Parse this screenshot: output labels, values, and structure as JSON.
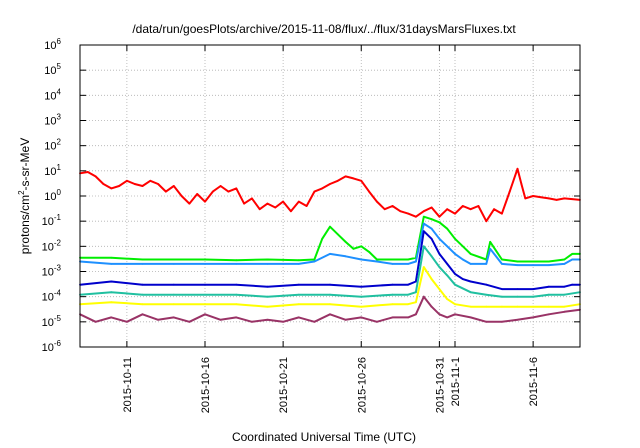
{
  "chart_data": {
    "type": "line",
    "title": "/data/run/goesPlots/archive/2015-11-08/flux/../flux/31daysMarsFluxes.txt",
    "xlabel": "Coordinated Universal Time (UTC)",
    "ylabel": "protons/cm2-s-sr-MeV",
    "ylabel_parts": {
      "base": "protons/cm",
      "sup": "2",
      "rest": "-s-sr-MeV"
    },
    "y_scale": "log",
    "ylim": [
      1e-06,
      1000000.0
    ],
    "y_ticks": [
      {
        "value": 1e-06,
        "base": "10",
        "exp": "-6"
      },
      {
        "value": 1e-05,
        "base": "10",
        "exp": "-5"
      },
      {
        "value": 0.0001,
        "base": "10",
        "exp": "-4"
      },
      {
        "value": 0.001,
        "base": "10",
        "exp": "-3"
      },
      {
        "value": 0.01,
        "base": "10",
        "exp": "-2"
      },
      {
        "value": 0.1,
        "base": "10",
        "exp": "-1"
      },
      {
        "value": 1,
        "base": "10",
        "exp": "0"
      },
      {
        "value": 10,
        "base": "10",
        "exp": "1"
      },
      {
        "value": 100,
        "base": "10",
        "exp": "2"
      },
      {
        "value": 1000,
        "base": "10",
        "exp": "3"
      },
      {
        "value": 10000,
        "base": "10",
        "exp": "4"
      },
      {
        "value": 100000,
        "base": "10",
        "exp": "5"
      },
      {
        "value": 1000000,
        "base": "10",
        "exp": "6"
      }
    ],
    "xlim": [
      "2015-10-08",
      "2015-11-09"
    ],
    "x_ticks": [
      {
        "date": "2015-10-11",
        "label": "2015-10-11"
      },
      {
        "date": "2015-10-16",
        "label": "2015-10-16"
      },
      {
        "date": "2015-10-21",
        "label": "2015-10-21"
      },
      {
        "date": "2015-10-26",
        "label": "2015-10-26"
      },
      {
        "date": "2015-10-31",
        "label": "2015-10-31"
      },
      {
        "date": "2015-11-01",
        "label": "2015-11-1"
      },
      {
        "date": "2015-11-06",
        "label": "2015-11-6"
      }
    ],
    "grid": true,
    "legend": "none",
    "series": [
      {
        "color": "#ff0000",
        "x": [
          "2015-10-08",
          "2015-10-08 12:00",
          "2015-10-09",
          "2015-10-09 12:00",
          "2015-10-10",
          "2015-10-10 12:00",
          "2015-10-11",
          "2015-10-11 12:00",
          "2015-10-12",
          "2015-10-12 12:00",
          "2015-10-13",
          "2015-10-13 12:00",
          "2015-10-14",
          "2015-10-14 12:00",
          "2015-10-15",
          "2015-10-15 12:00",
          "2015-10-16",
          "2015-10-16 12:00",
          "2015-10-17",
          "2015-10-17 12:00",
          "2015-10-18",
          "2015-10-18 12:00",
          "2015-10-19",
          "2015-10-19 12:00",
          "2015-10-20",
          "2015-10-20 12:00",
          "2015-10-21",
          "2015-10-21 12:00",
          "2015-10-22",
          "2015-10-22 12:00",
          "2015-10-23",
          "2015-10-23 12:00",
          "2015-10-24",
          "2015-10-24 12:00",
          "2015-10-25",
          "2015-10-25 12:00",
          "2015-10-26",
          "2015-10-26 12:00",
          "2015-10-27",
          "2015-10-27 12:00",
          "2015-10-28",
          "2015-10-28 12:00",
          "2015-10-29",
          "2015-10-29 12:00",
          "2015-10-30",
          "2015-10-30 12:00",
          "2015-10-31",
          "2015-10-31 12:00",
          "2015-11-01",
          "2015-11-01 12:00",
          "2015-11-02",
          "2015-11-02 12:00",
          "2015-11-03",
          "2015-11-03 12:00",
          "2015-11-04",
          "2015-11-04 12:00",
          "2015-11-05",
          "2015-11-05 06:00",
          "2015-11-05 12:00",
          "2015-11-06",
          "2015-11-06 12:00",
          "2015-11-07",
          "2015-11-07 12:00",
          "2015-11-08",
          "2015-11-08 12:00",
          "2015-11-09"
        ],
        "y": [
          8,
          9,
          6,
          3,
          2,
          2.5,
          4,
          3,
          2.5,
          4,
          3,
          1.5,
          2.5,
          1,
          0.5,
          1.2,
          0.6,
          1.5,
          2.5,
          1.5,
          2,
          0.5,
          0.8,
          0.3,
          0.5,
          0.35,
          0.6,
          0.25,
          0.6,
          0.4,
          1.5,
          2,
          3,
          4,
          6,
          5,
          4,
          1.5,
          0.6,
          0.3,
          0.4,
          0.25,
          0.2,
          0.15,
          0.25,
          0.35,
          0.15,
          0.3,
          0.2,
          0.4,
          0.3,
          0.4,
          0.1,
          0.3,
          0.2,
          1.5,
          12,
          3,
          0.8,
          1,
          0.9,
          0.8,
          0.7,
          0.8,
          0.75,
          0.7
        ]
      },
      {
        "color": "#00ee00",
        "x": [
          "2015-10-08",
          "2015-10-10",
          "2015-10-12",
          "2015-10-14",
          "2015-10-16",
          "2015-10-18",
          "2015-10-20",
          "2015-10-22",
          "2015-10-23",
          "2015-10-23 12:00",
          "2015-10-24",
          "2015-10-24 12:00",
          "2015-10-25",
          "2015-10-25 12:00",
          "2015-10-26",
          "2015-10-26 12:00",
          "2015-10-27",
          "2015-10-28",
          "2015-10-29",
          "2015-10-29 12:00",
          "2015-10-30",
          "2015-10-30 12:00",
          "2015-10-31",
          "2015-10-31 12:00",
          "2015-11-01",
          "2015-11-01 12:00",
          "2015-11-02",
          "2015-11-03",
          "2015-11-03 06:00",
          "2015-11-04",
          "2015-11-05",
          "2015-11-06",
          "2015-11-07",
          "2015-11-08",
          "2015-11-08 12:00",
          "2015-11-09"
        ],
        "y": [
          0.0035,
          0.0035,
          0.003,
          0.003,
          0.003,
          0.0028,
          0.003,
          0.0028,
          0.003,
          0.02,
          0.06,
          0.03,
          0.015,
          0.008,
          0.01,
          0.006,
          0.003,
          0.003,
          0.003,
          0.0035,
          0.15,
          0.12,
          0.09,
          0.05,
          0.02,
          0.01,
          0.005,
          0.003,
          0.015,
          0.003,
          0.0025,
          0.0025,
          0.0025,
          0.003,
          0.005,
          0.005
        ]
      },
      {
        "color": "#1e90ff",
        "x": [
          "2015-10-08",
          "2015-10-10",
          "2015-10-12",
          "2015-10-14",
          "2015-10-16",
          "2015-10-18",
          "2015-10-20",
          "2015-10-22",
          "2015-10-23",
          "2015-10-24",
          "2015-10-25",
          "2015-10-26",
          "2015-10-27",
          "2015-10-28",
          "2015-10-29",
          "2015-10-29 12:00",
          "2015-10-30",
          "2015-10-30 12:00",
          "2015-10-31",
          "2015-10-31 12:00",
          "2015-11-01",
          "2015-11-01 12:00",
          "2015-11-02",
          "2015-11-03",
          "2015-11-03 06:00",
          "2015-11-04",
          "2015-11-05",
          "2015-11-06",
          "2015-11-07",
          "2015-11-08",
          "2015-11-08 12:00",
          "2015-11-09"
        ],
        "y": [
          0.0025,
          0.002,
          0.002,
          0.002,
          0.002,
          0.002,
          0.002,
          0.002,
          0.0025,
          0.005,
          0.004,
          0.003,
          0.0025,
          0.002,
          0.002,
          0.0025,
          0.08,
          0.05,
          0.02,
          0.01,
          0.005,
          0.003,
          0.002,
          0.002,
          0.008,
          0.002,
          0.0018,
          0.0018,
          0.0018,
          0.002,
          0.003,
          0.003
        ]
      },
      {
        "color": "#0000cc",
        "x": [
          "2015-10-08",
          "2015-10-10",
          "2015-10-12",
          "2015-10-14",
          "2015-10-16",
          "2015-10-18",
          "2015-10-20",
          "2015-10-22",
          "2015-10-24",
          "2015-10-26",
          "2015-10-28",
          "2015-10-29",
          "2015-10-29 12:00",
          "2015-10-30",
          "2015-10-30 12:00",
          "2015-10-31",
          "2015-10-31 12:00",
          "2015-11-01",
          "2015-11-01 12:00",
          "2015-11-02",
          "2015-11-03",
          "2015-11-04",
          "2015-11-05",
          "2015-11-06",
          "2015-11-07",
          "2015-11-08",
          "2015-11-08 12:00",
          "2015-11-09"
        ],
        "y": [
          0.0003,
          0.0004,
          0.0003,
          0.0003,
          0.0003,
          0.0003,
          0.00025,
          0.0003,
          0.0003,
          0.00025,
          0.0003,
          0.0003,
          0.0004,
          0.04,
          0.02,
          0.005,
          0.002,
          0.0008,
          0.0005,
          0.0004,
          0.0003,
          0.0002,
          0.0002,
          0.0002,
          0.00025,
          0.00025,
          0.0003,
          0.0003
        ]
      },
      {
        "color": "#20c0a0",
        "x": [
          "2015-10-08",
          "2015-10-10",
          "2015-10-12",
          "2015-10-14",
          "2015-10-16",
          "2015-10-18",
          "2015-10-20",
          "2015-10-22",
          "2015-10-24",
          "2015-10-26",
          "2015-10-28",
          "2015-10-29",
          "2015-10-29 12:00",
          "2015-10-30",
          "2015-10-30 12:00",
          "2015-10-31",
          "2015-10-31 12:00",
          "2015-11-01",
          "2015-11-02",
          "2015-11-03",
          "2015-11-04",
          "2015-11-05",
          "2015-11-06",
          "2015-11-07",
          "2015-11-08",
          "2015-11-09"
        ],
        "y": [
          0.00012,
          0.00015,
          0.00012,
          0.00012,
          0.00012,
          0.00012,
          0.0001,
          0.00012,
          0.00012,
          0.0001,
          0.00012,
          0.00012,
          0.00015,
          0.01,
          0.004,
          0.0015,
          0.0007,
          0.0003,
          0.00015,
          0.00012,
          0.0001,
          0.0001,
          0.0001,
          0.00012,
          0.00012,
          0.00015
        ]
      },
      {
        "color": "#ffff00",
        "x": [
          "2015-10-08",
          "2015-10-10",
          "2015-10-12",
          "2015-10-14",
          "2015-10-16",
          "2015-10-18",
          "2015-10-20",
          "2015-10-22",
          "2015-10-24",
          "2015-10-26",
          "2015-10-28",
          "2015-10-29",
          "2015-10-29 12:00",
          "2015-10-30",
          "2015-10-30 12:00",
          "2015-10-31",
          "2015-10-31 12:00",
          "2015-11-01",
          "2015-11-02",
          "2015-11-03",
          "2015-11-04",
          "2015-11-05",
          "2015-11-06",
          "2015-11-07",
          "2015-11-08",
          "2015-11-09"
        ],
        "y": [
          5e-05,
          6e-05,
          5e-05,
          5e-05,
          5e-05,
          5e-05,
          4e-05,
          5e-05,
          5e-05,
          4e-05,
          5e-05,
          5e-05,
          6e-05,
          0.0015,
          0.0005,
          0.0002,
          8e-05,
          5e-05,
          4e-05,
          4e-05,
          4e-05,
          4e-05,
          4e-05,
          4e-05,
          4e-05,
          5e-05
        ]
      },
      {
        "color": "#993366",
        "x": [
          "2015-10-08",
          "2015-10-09",
          "2015-10-10",
          "2015-10-11",
          "2015-10-12",
          "2015-10-13",
          "2015-10-14",
          "2015-10-15",
          "2015-10-16",
          "2015-10-17",
          "2015-10-18",
          "2015-10-19",
          "2015-10-20",
          "2015-10-21",
          "2015-10-22",
          "2015-10-23",
          "2015-10-24",
          "2015-10-25",
          "2015-10-26",
          "2015-10-27",
          "2015-10-28",
          "2015-10-29",
          "2015-10-29 12:00",
          "2015-10-30",
          "2015-10-30 12:00",
          "2015-10-31",
          "2015-10-31 12:00",
          "2015-11-01",
          "2015-11-02",
          "2015-11-03",
          "2015-11-04",
          "2015-11-05",
          "2015-11-06",
          "2015-11-07",
          "2015-11-08",
          "2015-11-09"
        ],
        "y": [
          2e-05,
          1e-05,
          1.5e-05,
          1e-05,
          2e-05,
          1.2e-05,
          1.5e-05,
          1e-05,
          2e-05,
          1.2e-05,
          1.5e-05,
          1e-05,
          1.2e-05,
          1e-05,
          1.5e-05,
          1e-05,
          2e-05,
          1.2e-05,
          1.5e-05,
          1e-05,
          1.5e-05,
          1.5e-05,
          2e-05,
          0.0001,
          4e-05,
          2e-05,
          1.5e-05,
          2e-05,
          1.5e-05,
          1e-05,
          1e-05,
          1.2e-05,
          1.5e-05,
          2e-05,
          2.5e-05,
          3e-05
        ]
      }
    ]
  }
}
